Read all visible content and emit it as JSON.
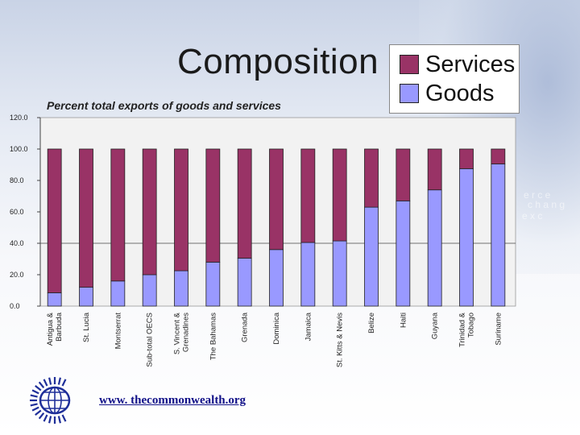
{
  "slide": {
    "title": "Composition",
    "subtitle": "Percent total exports of goods and services",
    "website": "www. thecommonwealth.org"
  },
  "legend": {
    "items": [
      {
        "label": "Services",
        "color": "#993366"
      },
      {
        "label": "Goods",
        "color": "#9999ff"
      }
    ]
  },
  "chart_data": {
    "type": "bar",
    "stacked": true,
    "subtitle": "Percent total exports of goods and services",
    "categories": [
      "Antigua & Barbuda",
      "St. Lucia",
      "Montserrat",
      "Sub-total OECS",
      "S. Vincent & Grenadines",
      "The Bahamas",
      "Grenada",
      "Dominica",
      "Jamaica",
      "St. Kitts & Nevis",
      "Belize",
      "Haiti",
      "Guyana",
      "Trinidad & Tobago",
      "Suriname"
    ],
    "category_lines": [
      [
        "Antigua &",
        "Barbuda"
      ],
      [
        "St. Lucia"
      ],
      [
        "Montserrat"
      ],
      [
        "Sub-total OECS"
      ],
      [
        "S. Vincent &",
        "Grenadines"
      ],
      [
        "The Bahamas"
      ],
      [
        "Grenada"
      ],
      [
        "Dominica"
      ],
      [
        "Jamaica"
      ],
      [
        "St. Kitts & Nevis"
      ],
      [
        "Belize"
      ],
      [
        "Haiti"
      ],
      [
        "Guyana"
      ],
      [
        "Trinidad &",
        "Tobago"
      ],
      [
        "Suriname"
      ]
    ],
    "series": [
      {
        "name": "Goods",
        "color": "#9999ff",
        "values": [
          8.5,
          12,
          16,
          20,
          22.5,
          28,
          30.5,
          36,
          40.5,
          41.5,
          63,
          67,
          74,
          87.5,
          90.5
        ]
      },
      {
        "name": "Services",
        "color": "#993366",
        "values": [
          91.5,
          88,
          84,
          80,
          77.5,
          72,
          69.5,
          64,
          59.5,
          58.5,
          37,
          33,
          26,
          12.5,
          9.5
        ]
      }
    ],
    "ylim": [
      0,
      120
    ],
    "yticks": [
      "0.0",
      "20.0",
      "40.0",
      "60.0",
      "80.0",
      "100.0",
      "120.0"
    ],
    "ytick_values": [
      0,
      20,
      40,
      60,
      80,
      100,
      120
    ],
    "grid": "horizontal at 40",
    "legend_position": "top-right"
  }
}
